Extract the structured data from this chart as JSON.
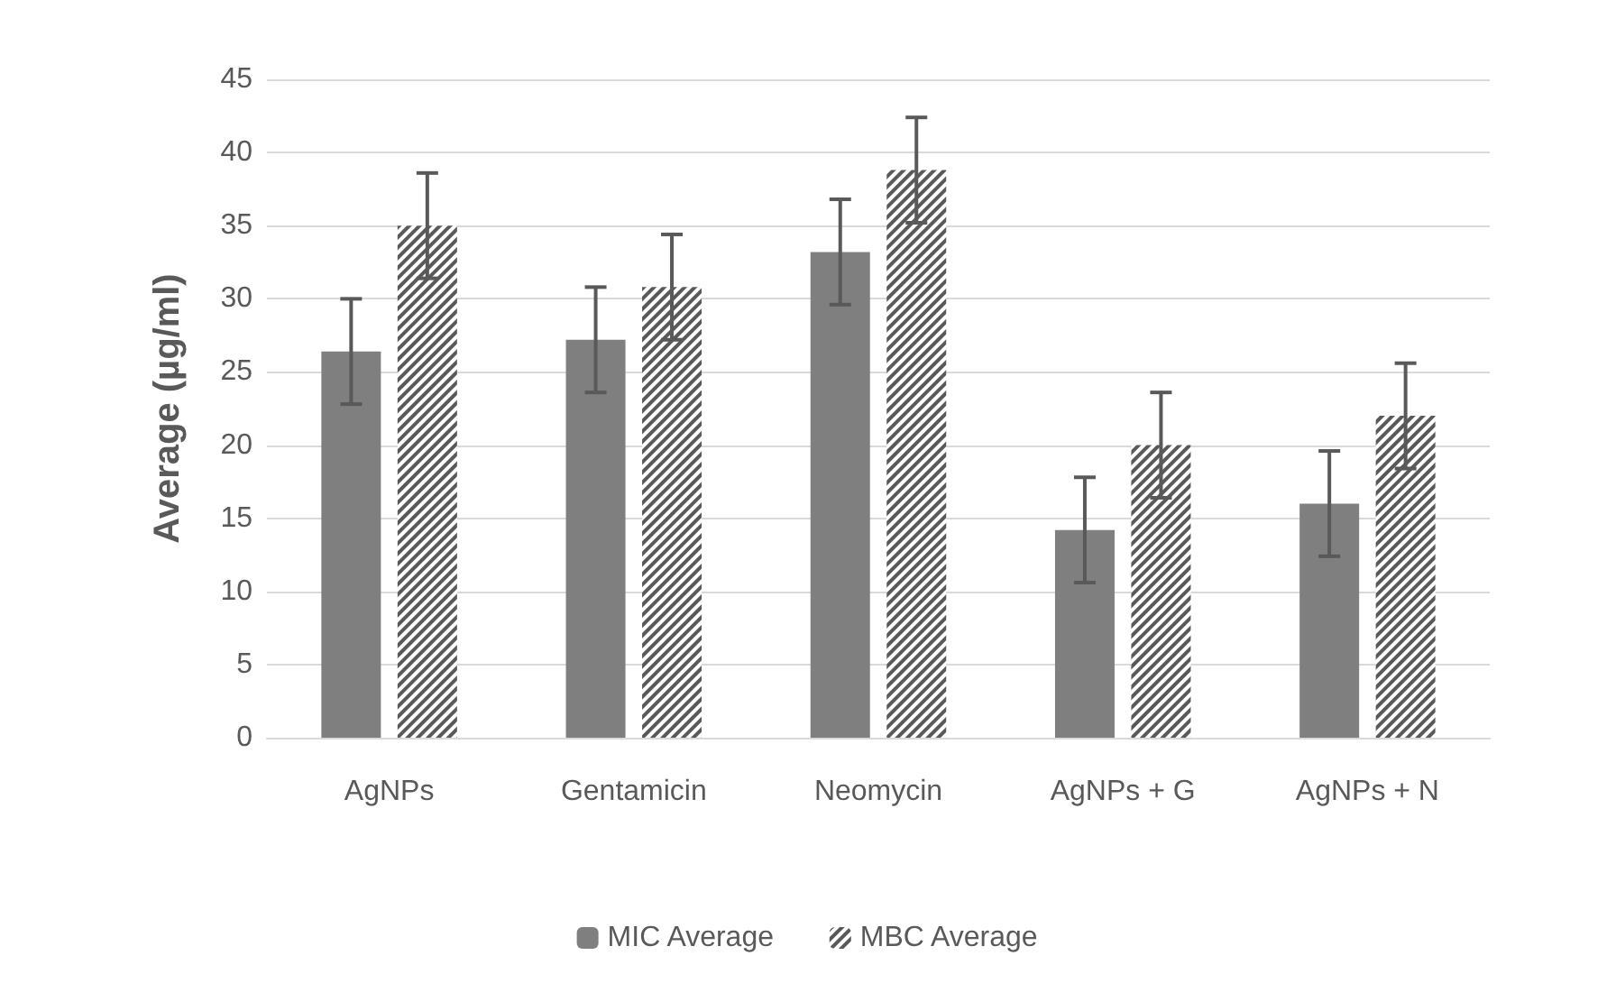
{
  "chart_data": {
    "type": "bar",
    "ylabel": "Average (µg/ml)",
    "categories": [
      "AgNPs",
      "Gentamicin",
      "Neomycin",
      "AgNPs + G",
      "AgNPs + N"
    ],
    "series": [
      {
        "name": "MIC Average",
        "color": "#7f7f7f",
        "values": [
          26.4,
          27.2,
          33.2,
          14.2,
          16.0
        ],
        "errors": [
          3.6,
          3.6,
          3.6,
          3.6,
          3.6
        ]
      },
      {
        "name": "MBC Average",
        "color": "#595959",
        "values": [
          35.0,
          30.8,
          38.8,
          20.0,
          22.0
        ],
        "errors": [
          3.6,
          3.6,
          3.6,
          3.6,
          3.6
        ]
      }
    ],
    "ylim": [
      0,
      45
    ],
    "yticks": [
      0,
      5,
      10,
      15,
      20,
      25,
      30,
      35,
      40,
      45
    ],
    "grid": "y",
    "legend": "bottom"
  }
}
